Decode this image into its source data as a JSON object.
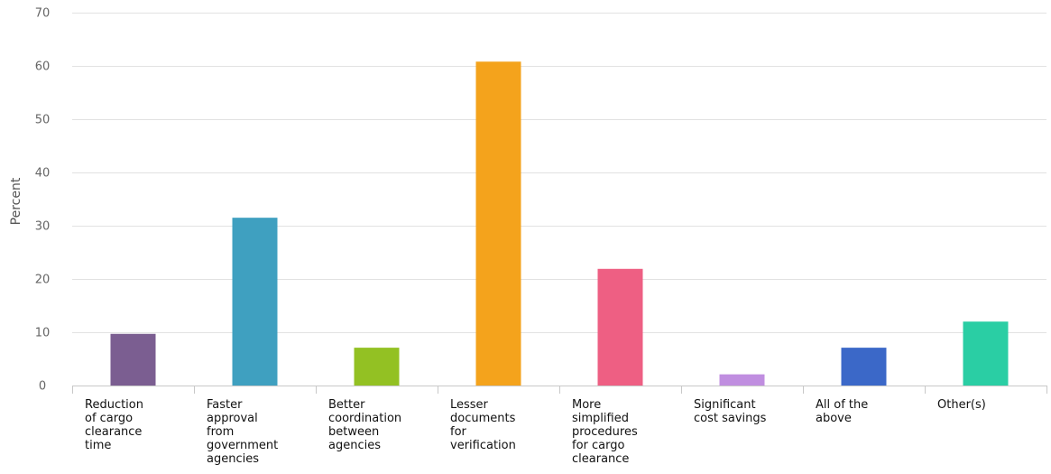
{
  "chart_data": {
    "type": "bar",
    "title": "",
    "xlabel": "",
    "ylabel": "Percent",
    "ylim": [
      0,
      70
    ],
    "yticks": [
      0,
      10,
      20,
      30,
      40,
      50,
      60,
      70
    ],
    "grid": true,
    "legend": "none",
    "categories": [
      [
        "Reduction",
        "of cargo",
        "clearance",
        "time"
      ],
      [
        "Faster",
        "approval",
        "from",
        "government",
        "agencies"
      ],
      [
        "Better",
        "coordination",
        "between",
        "agencies"
      ],
      [
        "Lesser",
        "documents",
        "for",
        "verification"
      ],
      [
        "More",
        "simplified",
        "procedures",
        "for cargo",
        "clearance"
      ],
      [
        "Significant",
        "cost savings"
      ],
      [
        "All of the",
        "above"
      ],
      [
        "Other(s)"
      ]
    ],
    "series": [
      {
        "values": [
          9.7,
          31.5,
          7.1,
          60.8,
          21.9,
          2.1,
          7.1,
          12.0
        ],
        "colors": [
          "#7b5e91",
          "#3fa0c0",
          "#93c123",
          "#f4a31c",
          "#ee5f83",
          "#c08ee0",
          "#3b68c8",
          "#2acea4"
        ]
      }
    ]
  }
}
